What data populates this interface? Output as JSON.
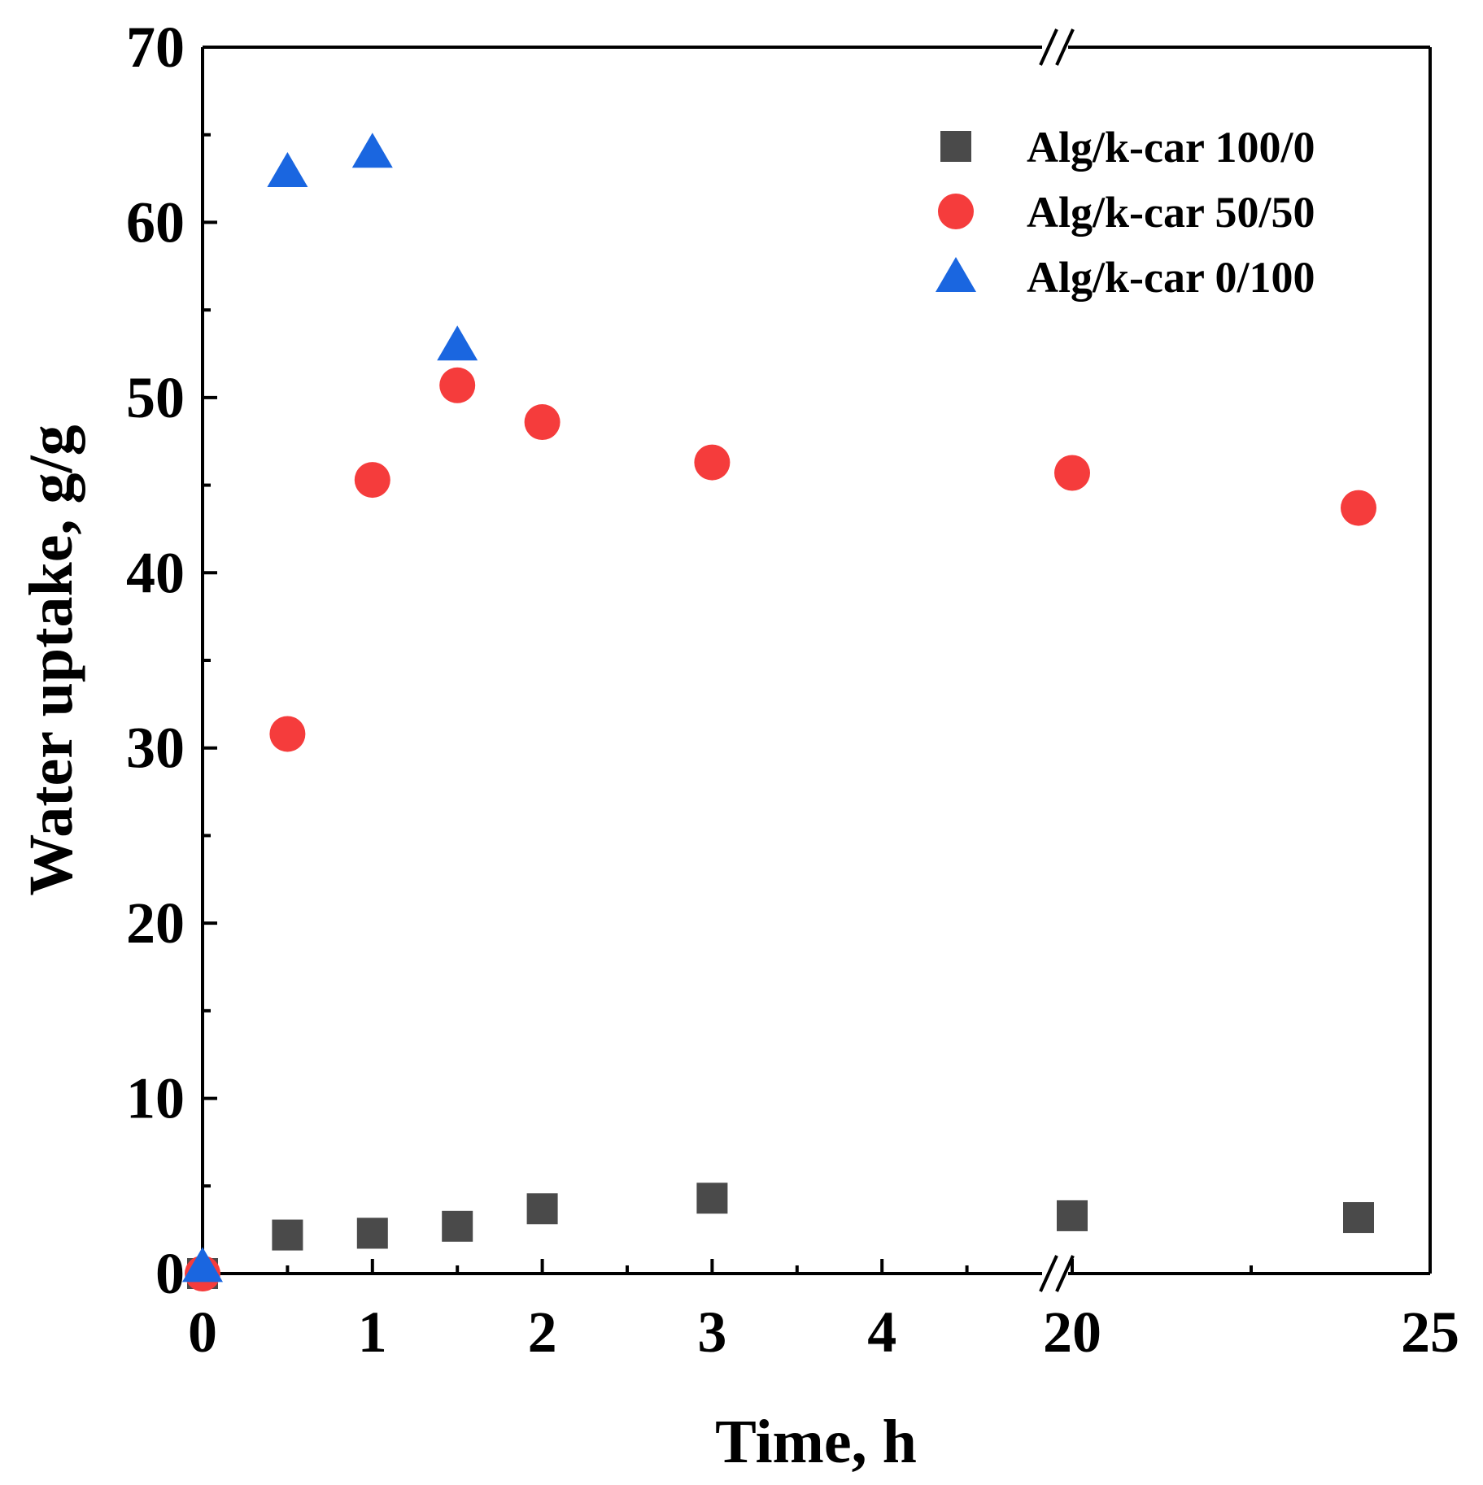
{
  "chart_data": {
    "type": "scatter",
    "title": "",
    "xlabel": "Time, h",
    "ylabel": "Water uptake, g/g",
    "ylim": [
      0,
      70
    ],
    "y_ticks": [
      "0",
      "10",
      "20",
      "30",
      "40",
      "50",
      "60",
      "70"
    ],
    "x_axis_break": "between 4.5 and 19.5",
    "x_segments": [
      {
        "range": [
          0,
          5
        ],
        "ticks": [
          "0",
          "1",
          "2",
          "3",
          "4"
        ]
      },
      {
        "range": [
          19.5,
          25
        ],
        "ticks": [
          "20",
          "25"
        ]
      }
    ],
    "legend_position": "top-right",
    "grid": false,
    "series": [
      {
        "name": "Alg/k-car 100/0",
        "marker": "square",
        "color": "#4a4a4a",
        "x": [
          0,
          0.5,
          1,
          1.5,
          2,
          3,
          20,
          24
        ],
        "y": [
          0,
          2.2,
          2.3,
          2.7,
          3.7,
          4.3,
          3.3,
          3.2
        ]
      },
      {
        "name": "Alg/k-car 50/50",
        "marker": "circle",
        "color": "#f53c3c",
        "x": [
          0,
          0.5,
          1,
          1.5,
          2,
          3,
          20,
          24
        ],
        "y": [
          0,
          30.8,
          45.3,
          50.7,
          48.6,
          46.3,
          45.7,
          43.7
        ]
      },
      {
        "name": "Alg/k-car 0/100",
        "marker": "triangle",
        "color": "#1a66e0",
        "x": [
          0,
          0.5,
          1,
          1.5
        ],
        "y": [
          0.4,
          62.9,
          64.0,
          53.0
        ]
      }
    ]
  }
}
